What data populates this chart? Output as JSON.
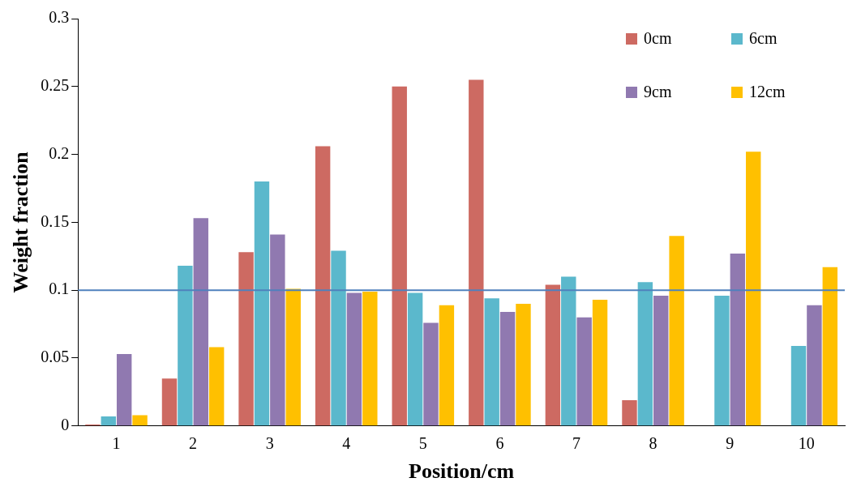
{
  "chart_data": {
    "type": "bar",
    "xlabel": "Position/cm",
    "ylabel": "Weight fraction",
    "categories": [
      "1",
      "2",
      "3",
      "4",
      "5",
      "6",
      "7",
      "8",
      "9",
      "10"
    ],
    "series": [
      {
        "name": "0cm",
        "color": "#cd6a62",
        "values": [
          0.001,
          0.035,
          0.128,
          0.206,
          0.25,
          0.255,
          0.104,
          0.019,
          0,
          0
        ]
      },
      {
        "name": "6cm",
        "color": "#5bb8cc",
        "values": [
          0.007,
          0.118,
          0.18,
          0.129,
          0.098,
          0.094,
          0.11,
          0.106,
          0.096,
          0.059
        ]
      },
      {
        "name": "9cm",
        "color": "#9079b0",
        "values": [
          0.053,
          0.153,
          0.141,
          0.098,
          0.076,
          0.084,
          0.08,
          0.096,
          0.127,
          0.089
        ]
      },
      {
        "name": "12cm",
        "color": "#ffc000",
        "values": [
          0.008,
          0.058,
          0.101,
          0.099,
          0.089,
          0.09,
          0.093,
          0.14,
          0.202,
          0.117
        ]
      }
    ],
    "ylim": [
      0,
      0.3
    ],
    "yticks": [
      0,
      0.05,
      0.1,
      0.15,
      0.2,
      0.25,
      0.3
    ],
    "ref_lines": [
      {
        "axis": "y",
        "value": 0.1,
        "color": "#4f81bd"
      }
    ],
    "grid": false,
    "legend": "top right"
  }
}
